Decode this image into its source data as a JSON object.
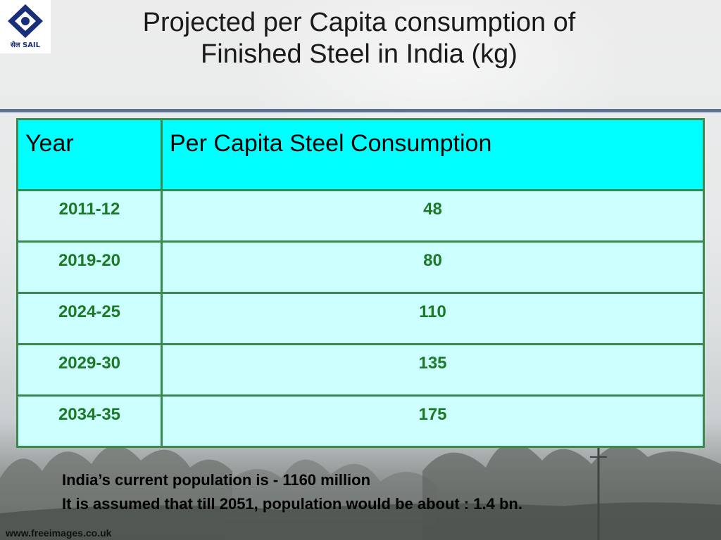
{
  "logo": {
    "text": "सेल SAIL"
  },
  "title": {
    "line1": "Projected per Capita consumption of",
    "line2": "Finished Steel in India (kg)"
  },
  "table": {
    "headers": [
      "Year",
      "Per Capita Steel Consumption"
    ],
    "rows": [
      [
        "2011-12",
        "48"
      ],
      [
        "2019-20",
        "80"
      ],
      [
        "2024-25",
        "110"
      ],
      [
        "2029-30",
        "135"
      ],
      [
        "2034-35",
        "175"
      ]
    ]
  },
  "notes": {
    "line1": "India’s current population is -  1160 million",
    "line2": "It is assumed that till 2051, population would be about : 1.4 bn."
  },
  "footer": {
    "credit": "www.freeimages.co.uk"
  },
  "colors": {
    "header_bg": "#00ffff",
    "cell_bg": "#ccffff",
    "border": "#3b8a4d",
    "value_text": "#1c7a25",
    "logo_blue": "#1a2f7a"
  }
}
